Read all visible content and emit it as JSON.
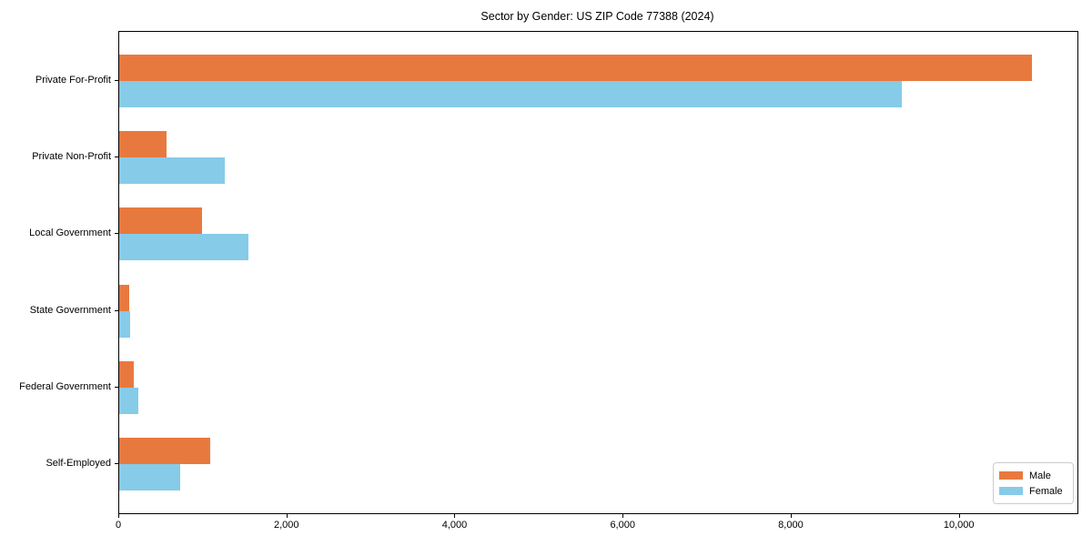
{
  "title": "Sector by Gender: US ZIP Code 77388 (2024)",
  "chart_data": {
    "type": "bar",
    "orientation": "horizontal",
    "title": "Sector by Gender: US ZIP Code 77388 (2024)",
    "categories": [
      "Private For-Profit",
      "Private Non-Profit",
      "Local Government",
      "State Government",
      "Federal Government",
      "Self-Employed"
    ],
    "series": [
      {
        "name": "Male",
        "color": "#e8793e",
        "values": [
          10860,
          560,
          985,
          115,
          170,
          1080
        ]
      },
      {
        "name": "Female",
        "color": "#86cbe8",
        "values": [
          9310,
          1255,
          1535,
          135,
          225,
          725
        ]
      }
    ],
    "xlabel": "",
    "ylabel": "",
    "xlim": [
      0,
      11400
    ],
    "xticks": [
      0,
      2000,
      4000,
      6000,
      8000,
      10000
    ],
    "xtick_labels": [
      "0",
      "2,000",
      "4,000",
      "6,000",
      "8,000",
      "10,000"
    ],
    "grid": false,
    "legend_position": "lower right"
  }
}
